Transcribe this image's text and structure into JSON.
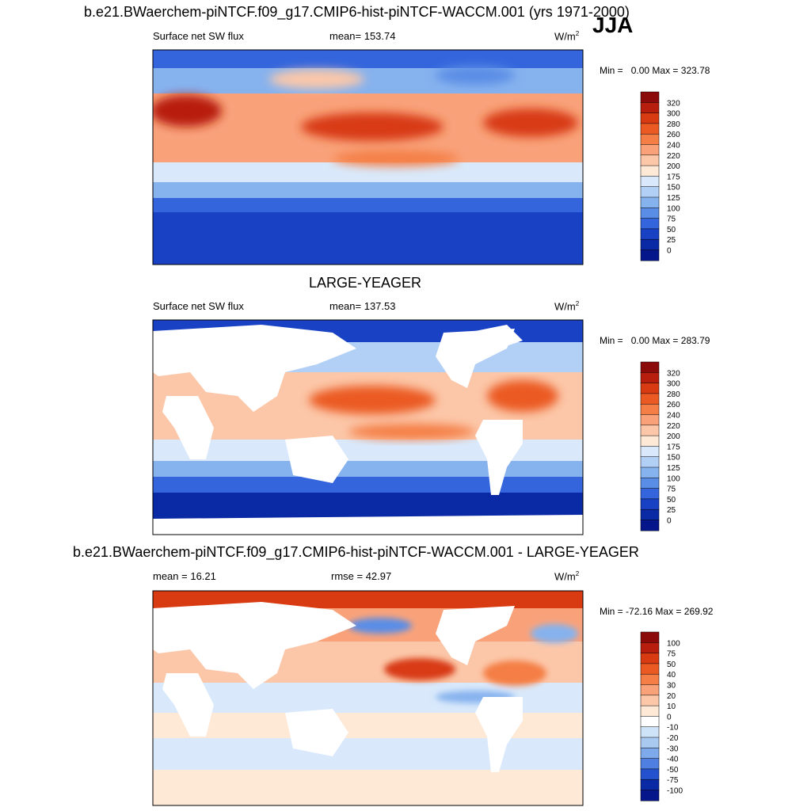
{
  "header": {
    "main_title": "b.e21.BWaerchem-piNTCF.f09_g17.CMIP6-hist-piNTCF-WACCM.001 (yrs 1971-2000)",
    "season": "JJA"
  },
  "chart_data": [
    {
      "type": "heatmap",
      "title": "",
      "variable": "Surface net SW flux",
      "stat_label": "mean= 153.74",
      "units_base": "W/m",
      "units_exp": "2",
      "min_label": "Min =",
      "min_value": "0.00",
      "max_label": "Max =",
      "max_value": "323.78",
      "colorbar_levels": [
        "320",
        "300",
        "280",
        "260",
        "240",
        "220",
        "200",
        "175",
        "150",
        "125",
        "100",
        "75",
        "50",
        "25",
        "0"
      ],
      "colorbar_colors": [
        "#8b0a0a",
        "#b81e0e",
        "#d83a12",
        "#eb5a23",
        "#f47e45",
        "#f9a27a",
        "#fcc7a9",
        "#fee8d6",
        "#d9e9fb",
        "#b2d0f5",
        "#86b2ee",
        "#5a8de6",
        "#3465dc",
        "#1941c4",
        "#0a2aa5",
        "#05158a"
      ],
      "field": "present_day"
    },
    {
      "type": "heatmap",
      "title": "LARGE-YEAGER",
      "variable": "Surface net SW flux",
      "stat_label": "mean= 137.53",
      "units_base": "W/m",
      "units_exp": "2",
      "min_label": "Min =",
      "min_value": "0.00",
      "max_label": "Max =",
      "max_value": "283.79",
      "colorbar_levels": [
        "320",
        "300",
        "280",
        "260",
        "240",
        "220",
        "200",
        "175",
        "150",
        "125",
        "100",
        "75",
        "50",
        "25",
        "0"
      ],
      "colorbar_colors": [
        "#8b0a0a",
        "#b81e0e",
        "#d83a12",
        "#eb5a23",
        "#f47e45",
        "#f9a27a",
        "#fcc7a9",
        "#fee8d6",
        "#d9e9fb",
        "#b2d0f5",
        "#86b2ee",
        "#5a8de6",
        "#3465dc",
        "#1941c4",
        "#0a2aa5",
        "#05158a"
      ],
      "field": "ocean_obs"
    },
    {
      "type": "heatmap",
      "title": "b.e21.BWaerchem-piNTCF.f09_g17.CMIP6-hist-piNTCF-WACCM.001 - LARGE-YEAGER",
      "variable": "",
      "stat_label": "mean =  16.21",
      "stat_label2": "rmse =  42.97",
      "units_base": "W/m",
      "units_exp": "2",
      "min_label": "Min =",
      "min_value": "-72.16",
      "max_label": "Max =",
      "max_value": "269.92",
      "colorbar_levels": [
        "100",
        "75",
        "50",
        "40",
        "30",
        "20",
        "10",
        "0",
        "-10",
        "-20",
        "-30",
        "-40",
        "-50",
        "-75",
        "-100"
      ],
      "colorbar_colors": [
        "#8b0a0a",
        "#b81e0e",
        "#d83a12",
        "#eb5a23",
        "#f47e45",
        "#f9a27a",
        "#fcc7a9",
        "#fee8d6",
        "#ffffff",
        "#cfe3f8",
        "#a9c9f1",
        "#7ea9ea",
        "#4f7fe0",
        "#2452cf",
        "#0a2aa5",
        "#05158a"
      ],
      "field": "difference"
    }
  ]
}
